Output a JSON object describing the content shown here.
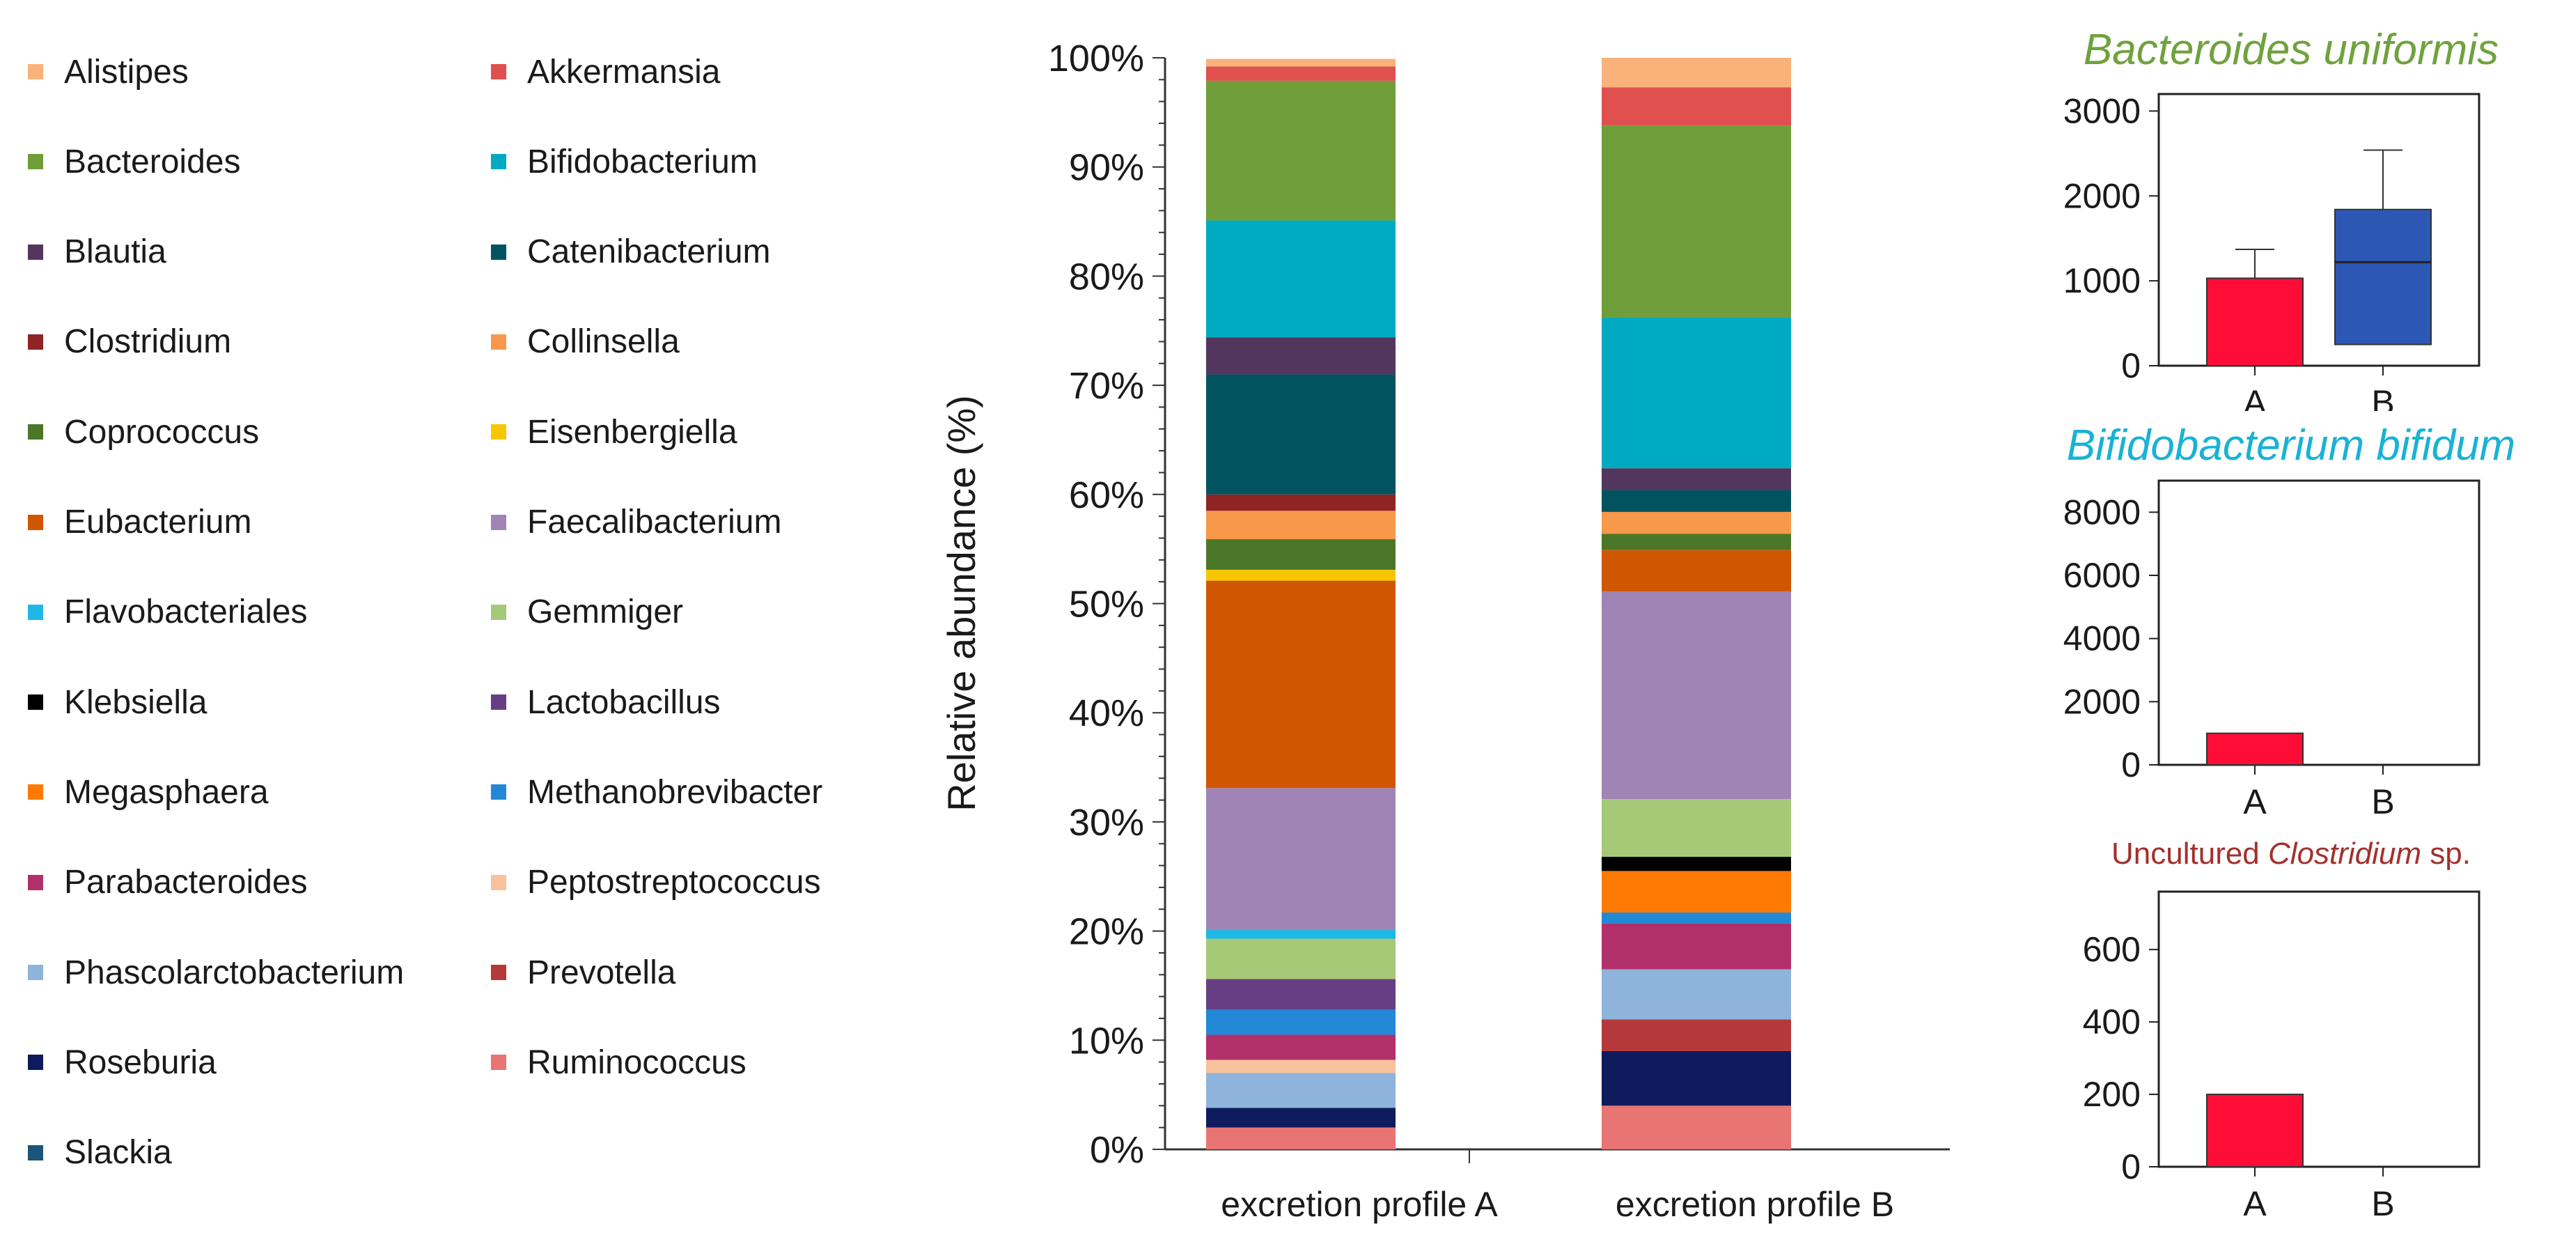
{
  "legend": [
    {
      "label": "Alistipes",
      "color": "#f9b27a"
    },
    {
      "label": "Akkermansia",
      "color": "#e0504f"
    },
    {
      "label": "Bacteroides",
      "color": "#6f9e3a"
    },
    {
      "label": "Bifidobacterium",
      "color": "#00abc2"
    },
    {
      "label": "Blautia",
      "color": "#53365e"
    },
    {
      "label": "Catenibacterium",
      "color": "#01535f"
    },
    {
      "label": "Clostridium",
      "color": "#8e2423"
    },
    {
      "label": "Collinsella",
      "color": "#f7984a"
    },
    {
      "label": "Coprococcus",
      "color": "#4d7728"
    },
    {
      "label": "Eisenbergiella",
      "color": "#f8c600"
    },
    {
      "label": "Eubacterium",
      "color": "#d15601"
    },
    {
      "label": "Faecalibacterium",
      "color": "#a084b6"
    },
    {
      "label": "Flavobacteriales",
      "color": "#1fb8e6"
    },
    {
      "label": "Gemmiger",
      "color": "#a6c978"
    },
    {
      "label": "Klebsiella",
      "color": "#000000"
    },
    {
      "label": "Lactobacillus",
      "color": "#673e84"
    },
    {
      "label": "Megasphaera",
      "color": "#ff7a05"
    },
    {
      "label": "Methanobrevibacter",
      "color": "#2388d6"
    },
    {
      "label": "Parabacteroides",
      "color": "#b2306a"
    },
    {
      "label": "Peptostreptococcus",
      "color": "#f9c19c"
    },
    {
      "label": "Phascolarctobacterium",
      "color": "#8eb4dc"
    },
    {
      "label": "Prevotella",
      "color": "#b5393b"
    },
    {
      "label": "Roseburia",
      "color": "#0e1b5c"
    },
    {
      "label": "Ruminococcus",
      "color": "#e87572"
    },
    {
      "label": "Slackia",
      "color": "#1d5578"
    }
  ],
  "chart_data": [
    {
      "type": "stacked-bar",
      "ylabel": "Relative abundance (%)",
      "ylim": [
        0,
        100
      ],
      "yticks": [
        0,
        10,
        20,
        30,
        40,
        50,
        60,
        70,
        80,
        90,
        100
      ],
      "ytick_labels": [
        "0%",
        "10%",
        "20%",
        "30%",
        "40%",
        "50%",
        "60%",
        "70%",
        "80%",
        "90%",
        "100%"
      ],
      "categories": [
        "excretion profile A",
        "excretion profile B"
      ],
      "stacks": [
        [
          {
            "taxon": "Ruminococcus",
            "value": 2
          },
          {
            "taxon": "Roseburia",
            "value": 1.8
          },
          {
            "taxon": "Phascolarctobacterium",
            "value": 3.2
          },
          {
            "taxon": "Peptostreptococcus",
            "value": 1.2
          },
          {
            "taxon": "Parabacteroides",
            "value": 2.3
          },
          {
            "taxon": "Methanobrevibacter",
            "value": 2.3
          },
          {
            "taxon": "Lactobacillus",
            "value": 2.8
          },
          {
            "taxon": "Gemmiger",
            "value": 3.7
          },
          {
            "taxon": "Flavobacteriales",
            "value": 0.8
          },
          {
            "taxon": "Faecalibacterium",
            "value": 13
          },
          {
            "taxon": "Eubacterium",
            "value": 19
          },
          {
            "taxon": "Eisenbergiella",
            "value": 1
          },
          {
            "taxon": "Coprococcus",
            "value": 2.8
          },
          {
            "taxon": "Collinsella",
            "value": 2.6
          },
          {
            "taxon": "Clostridium",
            "value": 1.5
          },
          {
            "taxon": "Catenibacterium",
            "value": 11
          },
          {
            "taxon": "Blautia",
            "value": 3.4
          },
          {
            "taxon": "Bifidobacterium",
            "value": 10.7
          },
          {
            "taxon": "Bacteroides",
            "value": 12.8
          },
          {
            "taxon": "Akkermansia",
            "value": 1.3
          },
          {
            "taxon": "Alistipes",
            "value": 0.7
          }
        ],
        [
          {
            "taxon": "Ruminococcus",
            "value": 4
          },
          {
            "taxon": "Roseburia",
            "value": 5
          },
          {
            "taxon": "Prevotella",
            "value": 2.9
          },
          {
            "taxon": "Phascolarctobacterium",
            "value": 4.6
          },
          {
            "taxon": "Parabacteroides",
            "value": 4.2
          },
          {
            "taxon": "Methanobrevibacter",
            "value": 1
          },
          {
            "taxon": "Megasphaera",
            "value": 3.8
          },
          {
            "taxon": "Klebsiella",
            "value": 1.3
          },
          {
            "taxon": "Gemmiger",
            "value": 5.3
          },
          {
            "taxon": "Faecalibacterium",
            "value": 19
          },
          {
            "taxon": "Eubacterium",
            "value": 3.8
          },
          {
            "taxon": "Coprococcus",
            "value": 1.5
          },
          {
            "taxon": "Collinsella",
            "value": 2
          },
          {
            "taxon": "Catenibacterium",
            "value": 2
          },
          {
            "taxon": "Blautia",
            "value": 2
          },
          {
            "taxon": "Bifidobacterium",
            "value": 13.8
          },
          {
            "taxon": "Bacteroides",
            "value": 17.6
          },
          {
            "taxon": "Akkermansia",
            "value": 3.5
          },
          {
            "taxon": "Alistipes",
            "value": 2.7
          }
        ]
      ]
    },
    {
      "type": "box",
      "title": "Bacteroides uniformis",
      "title_color": "#6fa23d",
      "ylim": [
        0,
        3200
      ],
      "yticks": [
        0,
        1000,
        2000,
        3000
      ],
      "categories": [
        "A",
        "B"
      ],
      "bars": [
        {
          "category": "A",
          "value": 1030,
          "whisker_high": 1370,
          "color": "#ff0d37"
        }
      ],
      "boxes": [
        {
          "category": "B",
          "q1": 250,
          "median": 1220,
          "q3": 1840,
          "whisker_low": 250,
          "whisker_high": 2540,
          "color": "#2c57b5"
        }
      ]
    },
    {
      "type": "bar",
      "title": "Bifidobacterium bifidum",
      "title_color": "#19b2d6",
      "ylim": [
        0,
        9000
      ],
      "yticks": [
        0,
        2000,
        4000,
        6000,
        8000
      ],
      "categories": [
        "A",
        "B"
      ],
      "values": [
        1000,
        0
      ],
      "color": "#ff0d37"
    },
    {
      "type": "bar",
      "title_parts": [
        "Uncultured ",
        "Clostridium",
        " sp."
      ],
      "title_color": "#a3302d",
      "ylim": [
        0,
        760
      ],
      "yticks": [
        0,
        200,
        400,
        600
      ],
      "categories": [
        "A",
        "B"
      ],
      "values": [
        200,
        0
      ],
      "color": "#ff0d37"
    }
  ]
}
